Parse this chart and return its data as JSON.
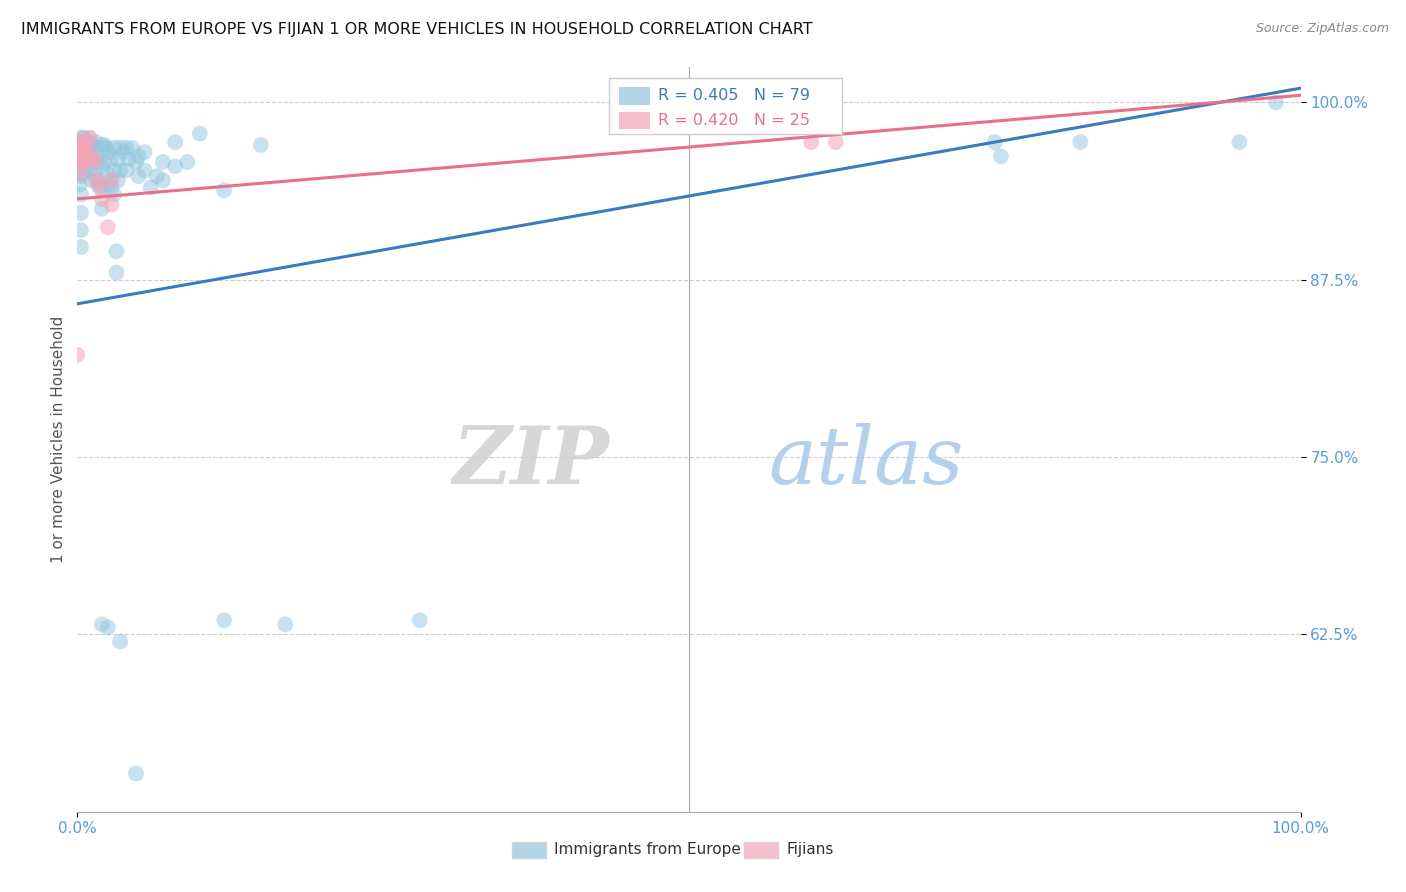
{
  "title": "IMMIGRANTS FROM EUROPE VS FIJIAN 1 OR MORE VEHICLES IN HOUSEHOLD CORRELATION CHART",
  "source": "Source: ZipAtlas.com",
  "ylabel": "1 or more Vehicles in Household",
  "xlim": [
    0.0,
    1.0
  ],
  "ylim": [
    0.5,
    1.025
  ],
  "yticks": [
    0.625,
    0.75,
    0.875,
    1.0
  ],
  "ytick_labels": [
    "62.5%",
    "75.0%",
    "87.5%",
    "100.0%"
  ],
  "xtick_vals": [
    0.0,
    1.0
  ],
  "xtick_labels": [
    "0.0%",
    "100.0%"
  ],
  "blue_R": 0.405,
  "blue_N": 79,
  "pink_R": 0.42,
  "pink_N": 25,
  "blue_color": "#92c5de",
  "pink_color": "#f4a5b8",
  "blue_line_color": "#3a7bbf",
  "pink_line_color": "#e8708a",
  "blue_line": [
    [
      0.0,
      0.858
    ],
    [
      1.0,
      1.01
    ]
  ],
  "pink_line": [
    [
      0.0,
      0.932
    ],
    [
      1.0,
      1.005
    ]
  ],
  "blue_scatter": [
    [
      0.002,
      0.972
    ],
    [
      0.002,
      0.962
    ],
    [
      0.002,
      0.952
    ],
    [
      0.002,
      0.942
    ],
    [
      0.003,
      0.975
    ],
    [
      0.003,
      0.968
    ],
    [
      0.003,
      0.958
    ],
    [
      0.003,
      0.948
    ],
    [
      0.003,
      0.935
    ],
    [
      0.003,
      0.922
    ],
    [
      0.003,
      0.91
    ],
    [
      0.003,
      0.898
    ],
    [
      0.004,
      0.972
    ],
    [
      0.004,
      0.962
    ],
    [
      0.004,
      0.95
    ],
    [
      0.005,
      0.975
    ],
    [
      0.005,
      0.965
    ],
    [
      0.006,
      0.972
    ],
    [
      0.006,
      0.96
    ],
    [
      0.007,
      0.968
    ],
    [
      0.008,
      0.972
    ],
    [
      0.008,
      0.96
    ],
    [
      0.009,
      0.955
    ],
    [
      0.01,
      0.975
    ],
    [
      0.01,
      0.965
    ],
    [
      0.01,
      0.952
    ],
    [
      0.011,
      0.97
    ],
    [
      0.011,
      0.958
    ],
    [
      0.012,
      0.97
    ],
    [
      0.012,
      0.96
    ],
    [
      0.012,
      0.945
    ],
    [
      0.013,
      0.965
    ],
    [
      0.015,
      0.972
    ],
    [
      0.015,
      0.962
    ],
    [
      0.015,
      0.948
    ],
    [
      0.016,
      0.958
    ],
    [
      0.016,
      0.945
    ],
    [
      0.018,
      0.94
    ],
    [
      0.02,
      0.97
    ],
    [
      0.02,
      0.955
    ],
    [
      0.02,
      0.94
    ],
    [
      0.02,
      0.925
    ],
    [
      0.022,
      0.97
    ],
    [
      0.022,
      0.958
    ],
    [
      0.024,
      0.968
    ],
    [
      0.024,
      0.95
    ],
    [
      0.025,
      0.965
    ],
    [
      0.025,
      0.942
    ],
    [
      0.027,
      0.96
    ],
    [
      0.027,
      0.945
    ],
    [
      0.028,
      0.94
    ],
    [
      0.03,
      0.968
    ],
    [
      0.03,
      0.952
    ],
    [
      0.03,
      0.935
    ],
    [
      0.032,
      0.895
    ],
    [
      0.032,
      0.88
    ],
    [
      0.033,
      0.96
    ],
    [
      0.033,
      0.945
    ],
    [
      0.035,
      0.968
    ],
    [
      0.035,
      0.952
    ],
    [
      0.038,
      0.965
    ],
    [
      0.04,
      0.968
    ],
    [
      0.04,
      0.952
    ],
    [
      0.042,
      0.96
    ],
    [
      0.045,
      0.968
    ],
    [
      0.048,
      0.958
    ],
    [
      0.05,
      0.962
    ],
    [
      0.05,
      0.948
    ],
    [
      0.055,
      0.965
    ],
    [
      0.055,
      0.952
    ],
    [
      0.06,
      0.94
    ],
    [
      0.065,
      0.948
    ],
    [
      0.07,
      0.958
    ],
    [
      0.07,
      0.945
    ],
    [
      0.08,
      0.972
    ],
    [
      0.08,
      0.955
    ],
    [
      0.09,
      0.958
    ],
    [
      0.1,
      0.978
    ],
    [
      0.12,
      0.938
    ],
    [
      0.15,
      0.97
    ],
    [
      0.02,
      0.632
    ],
    [
      0.025,
      0.63
    ],
    [
      0.12,
      0.635
    ],
    [
      0.17,
      0.632
    ],
    [
      0.28,
      0.635
    ],
    [
      0.035,
      0.62
    ],
    [
      0.048,
      0.527
    ],
    [
      0.75,
      0.972
    ],
    [
      0.755,
      0.962
    ],
    [
      0.82,
      0.972
    ],
    [
      0.95,
      0.972
    ],
    [
      0.98,
      1.0
    ]
  ],
  "pink_scatter": [
    [
      0.002,
      0.972
    ],
    [
      0.002,
      0.965
    ],
    [
      0.002,
      0.958
    ],
    [
      0.002,
      0.95
    ],
    [
      0.003,
      0.972
    ],
    [
      0.003,
      0.965
    ],
    [
      0.003,
      0.955
    ],
    [
      0.004,
      0.97
    ],
    [
      0.004,
      0.962
    ],
    [
      0.005,
      0.968
    ],
    [
      0.005,
      0.958
    ],
    [
      0.006,
      0.972
    ],
    [
      0.006,
      0.962
    ],
    [
      0.008,
      0.972
    ],
    [
      0.008,
      0.962
    ],
    [
      0.01,
      0.975
    ],
    [
      0.01,
      0.96
    ],
    [
      0.012,
      0.962
    ],
    [
      0.015,
      0.958
    ],
    [
      0.015,
      0.945
    ],
    [
      0.018,
      0.942
    ],
    [
      0.02,
      0.932
    ],
    [
      0.025,
      0.912
    ],
    [
      0.028,
      0.945
    ],
    [
      0.028,
      0.928
    ],
    [
      0.0,
      0.822
    ],
    [
      0.6,
      0.972
    ],
    [
      0.62,
      0.972
    ]
  ],
  "watermark_zip": "ZIP",
  "watermark_atlas": "atlas",
  "background_color": "#ffffff",
  "grid_color": "#cccccc",
  "title_fontsize": 11.5,
  "tick_color": "#5b9bd5",
  "ylabel_color": "#555555",
  "legend_edge_color": "#cccccc",
  "legend_blue_text_color": "#3a7bbf",
  "legend_pink_text_color": "#e8708a",
  "legend_n_color": "#333333",
  "bottom_legend_label_blue": "Immigrants from Europe",
  "bottom_legend_label_pink": "Fijians"
}
